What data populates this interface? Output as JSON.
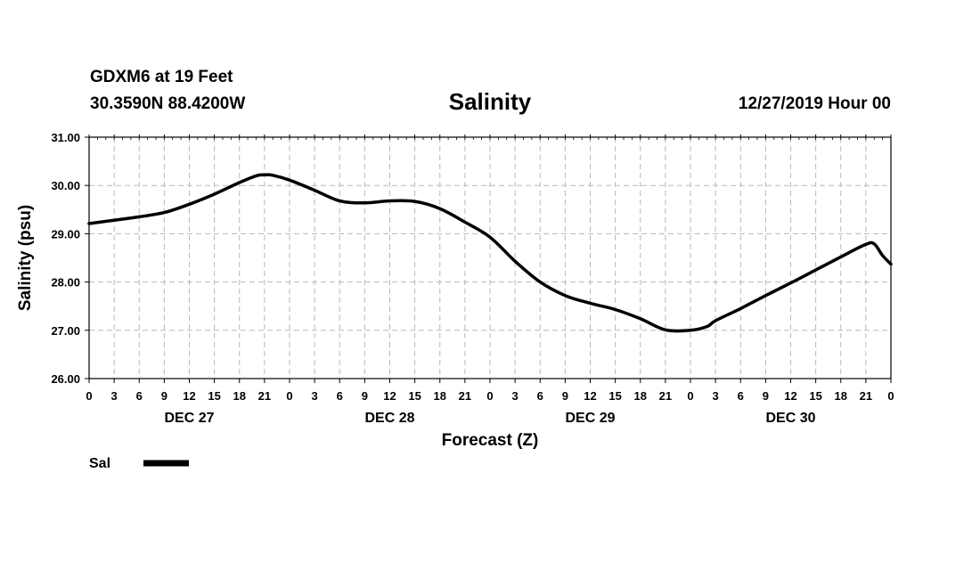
{
  "header": {
    "station": "GDXM6 at 19 Feet",
    "coords": "30.3590N 88.4200W",
    "title": "Salinity",
    "datetime": "12/27/2019 Hour 00"
  },
  "chart_data": {
    "type": "line",
    "title": "Salinity",
    "xlabel": "Forecast (Z)",
    "ylabel": "Salinity (psu)",
    "ylim": [
      26,
      31
    ],
    "yticks": [
      "26.00",
      "27.00",
      "28.00",
      "29.00",
      "30.00",
      "31.00"
    ],
    "xlim_hours": [
      0,
      96
    ],
    "xtick_labels": [
      "0",
      "3",
      "6",
      "9",
      "12",
      "15",
      "18",
      "21",
      "0",
      "3",
      "6",
      "9",
      "12",
      "15",
      "18",
      "21",
      "0",
      "3",
      "6",
      "9",
      "12",
      "15",
      "18",
      "21",
      "0",
      "3",
      "6",
      "9",
      "12",
      "15",
      "18",
      "21",
      "0"
    ],
    "day_labels": [
      {
        "label": "DEC 27",
        "hour": 12
      },
      {
        "label": "DEC 28",
        "hour": 36
      },
      {
        "label": "DEC 29",
        "hour": 60
      },
      {
        "label": "DEC 30",
        "hour": 84
      }
    ],
    "grid": true,
    "legend": [
      {
        "label": "Sal",
        "color": "#000000"
      }
    ],
    "series": [
      {
        "name": "Sal",
        "color": "#000000",
        "x": [
          0,
          3,
          6,
          9,
          12,
          15,
          18,
          20,
          21,
          22,
          24,
          27,
          30,
          33,
          36,
          39,
          42,
          45,
          48,
          51,
          54,
          57,
          60,
          63,
          66,
          69,
          72,
          74,
          75,
          78,
          81,
          84,
          87,
          90,
          93,
          94,
          95,
          96
        ],
        "values": [
          29.21,
          29.28,
          29.35,
          29.44,
          29.61,
          29.82,
          30.06,
          30.2,
          30.22,
          30.21,
          30.11,
          29.9,
          29.68,
          29.64,
          29.68,
          29.67,
          29.52,
          29.24,
          28.93,
          28.43,
          28.0,
          27.72,
          27.56,
          27.43,
          27.24,
          27.01,
          27.0,
          27.08,
          27.2,
          27.45,
          27.72,
          27.98,
          28.25,
          28.52,
          28.78,
          28.79,
          28.55,
          28.37
        ]
      }
    ]
  }
}
